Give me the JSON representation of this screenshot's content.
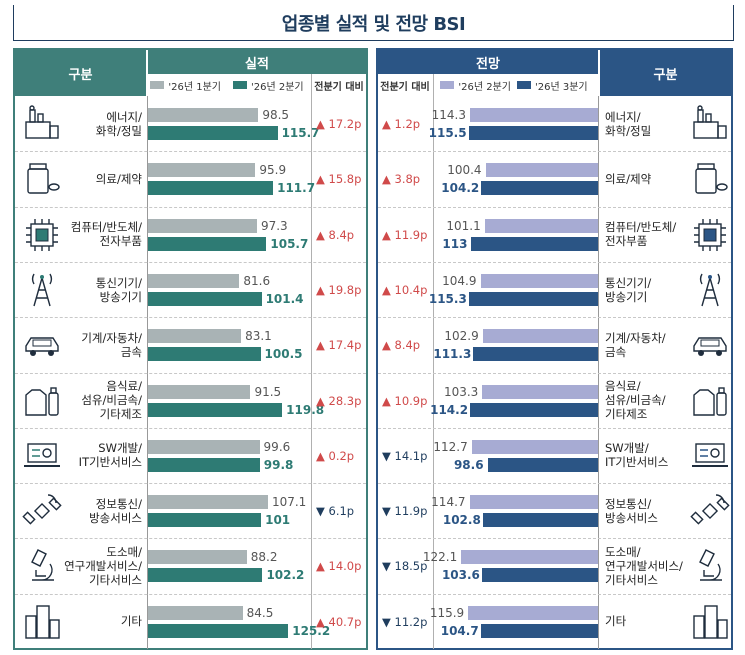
{
  "title": "업종별 실적 및 전망 BSI",
  "colors": {
    "actual_prev": "#a9b3b5",
    "actual_curr": "#2e7b74",
    "outlook_prev": "#a7abd3",
    "outlook_curr": "#2b5585",
    "up": "#d04a4a",
    "down": "#1f3d5e",
    "left_header": "#3f7f7a",
    "right_header": "#2b5585"
  },
  "headers": {
    "left_category": "구분",
    "actual": "실적",
    "actual_change": "전분기 대비",
    "outlook": "전망",
    "outlook_change": "전분기 대비",
    "right_category": "구분"
  },
  "legend": {
    "actual_prev": "'26년 1분기",
    "actual_curr": "'26년 2분기",
    "outlook_prev": "'26년 2분기",
    "outlook_curr": "'26년 3분기"
  },
  "chart_data": {
    "type": "bar",
    "title": "업종별 실적 및 전망 BSI",
    "categories": [
      {
        "name": "에너지/\n화학/정밀",
        "icon": "factory-icon"
      },
      {
        "name": "의료/제약",
        "icon": "medicine-icon"
      },
      {
        "name": "컴퓨터/반도체/\n전자부품",
        "icon": "chip-icon"
      },
      {
        "name": "통신기기/\n방송기기",
        "icon": "antenna-tower-icon"
      },
      {
        "name": "기계/자동차/\n금속",
        "icon": "car-icon"
      },
      {
        "name": "음식료/\n섬유/비금속/\n기타제조",
        "icon": "bottle-shirt-icon"
      },
      {
        "name": "SW개발/\nIT기반서비스",
        "icon": "laptop-gear-icon"
      },
      {
        "name": "정보통신/\n방송서비스",
        "icon": "satellite-icon"
      },
      {
        "name": "도소매/\n연구개발서비스/\n기타서비스",
        "icon": "microscope-icon"
      },
      {
        "name": "기타",
        "icon": "buildings-icon"
      }
    ],
    "actual": {
      "series": [
        {
          "name": "'26년 1분기",
          "values": [
            98.5,
            95.9,
            97.3,
            81.6,
            83.1,
            91.5,
            99.6,
            107.1,
            88.2,
            84.5
          ]
        },
        {
          "name": "'26년 2분기",
          "values": [
            115.7,
            111.7,
            105.7,
            101.4,
            100.5,
            119.8,
            99.8,
            101.0,
            102.2,
            125.2
          ]
        }
      ],
      "change": [
        {
          "dir": "up",
          "text": "17.2p"
        },
        {
          "dir": "up",
          "text": "15.8p"
        },
        {
          "dir": "up",
          "text": "8.4p"
        },
        {
          "dir": "up",
          "text": "19.8p"
        },
        {
          "dir": "up",
          "text": "17.4p"
        },
        {
          "dir": "up",
          "text": "28.3p"
        },
        {
          "dir": "up",
          "text": "0.2p"
        },
        {
          "dir": "down",
          "text": "6.1p"
        },
        {
          "dir": "up",
          "text": "14.0p"
        },
        {
          "dir": "up",
          "text": "40.7p"
        }
      ]
    },
    "outlook": {
      "series": [
        {
          "name": "'26년 2분기",
          "values": [
            114.3,
            100.4,
            101.1,
            104.9,
            102.9,
            103.3,
            112.7,
            114.7,
            122.1,
            115.9
          ]
        },
        {
          "name": "'26년 3분기",
          "values": [
            115.5,
            104.2,
            113.0,
            115.3,
            111.3,
            114.2,
            98.6,
            102.8,
            103.6,
            104.7
          ]
        }
      ],
      "change": [
        {
          "dir": "up",
          "text": "1.2p"
        },
        {
          "dir": "up",
          "text": "3.8p"
        },
        {
          "dir": "up",
          "text": "11.9p"
        },
        {
          "dir": "up",
          "text": "10.4p"
        },
        {
          "dir": "up",
          "text": "8.4p"
        },
        {
          "dir": "up",
          "text": "10.9p"
        },
        {
          "dir": "down",
          "text": "14.1p"
        },
        {
          "dir": "down",
          "text": "11.9p"
        },
        {
          "dir": "down",
          "text": "18.5p"
        },
        {
          "dir": "down",
          "text": "11.2p"
        }
      ]
    }
  }
}
